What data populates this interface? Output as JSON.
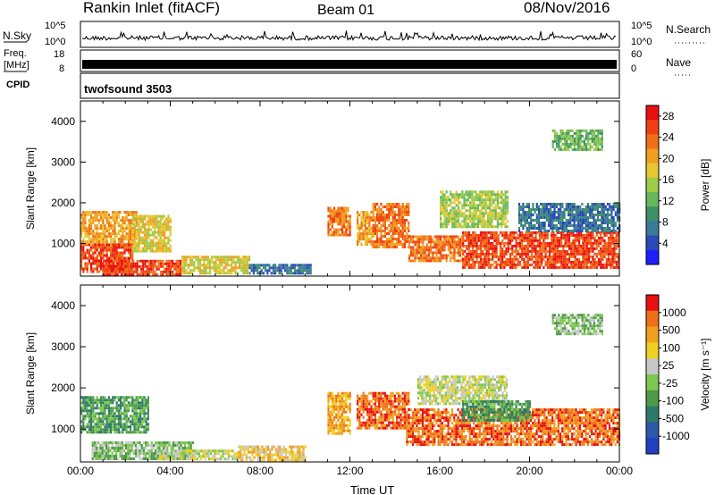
{
  "header": {
    "site": "Rankin Inlet (fitACF)",
    "beam": "Beam 01",
    "date": "08/Nov/2016"
  },
  "strips": {
    "nsky": {
      "label": "N.Sky",
      "ticks": [
        "10^5",
        "10^0"
      ],
      "right_ticks": [
        "10^5",
        "10^0"
      ],
      "right_label": "N.Search"
    },
    "freq": {
      "label_line1": "Freq.",
      "label_line2": "[MHz]",
      "ticks": [
        "18",
        "8"
      ],
      "right_ticks": [
        "60",
        "0"
      ],
      "right_label": "Nave"
    },
    "cpid": {
      "label": "CPID",
      "value": "twofsound 3503"
    }
  },
  "chart_data": [
    {
      "type": "heatmap",
      "name": "power",
      "ylabel": "Slant Range [km]",
      "ylim": [
        200,
        4500
      ],
      "y_ticks": [
        1000,
        2000,
        3000,
        4000
      ],
      "x_ticks": [
        "00:00",
        "04:00",
        "08:00",
        "12:00",
        "16:00",
        "20:00",
        "00:00"
      ],
      "xlim_hours": [
        0,
        24
      ],
      "colorbar": {
        "label": "Power [dB]",
        "ticks": [
          "4",
          "8",
          "12",
          "16",
          "20",
          "24",
          "28"
        ],
        "colors": [
          "#1e1eff",
          "#2a4ab8",
          "#3a7a9a",
          "#3e9066",
          "#66b85a",
          "#9ccc48",
          "#e8c830",
          "#f0a020",
          "#f07018",
          "#f04010",
          "#e81010"
        ]
      },
      "regions": [
        {
          "t0": 0.0,
          "t1": 2.5,
          "r0": 1000,
          "r1": 1800,
          "level": 7
        },
        {
          "t0": 0.0,
          "t1": 2.3,
          "r0": 300,
          "r1": 1000,
          "level": 9
        },
        {
          "t0": 2.3,
          "t1": 4.0,
          "r0": 800,
          "r1": 1700,
          "level": 6
        },
        {
          "t0": 1.0,
          "t1": 4.5,
          "r0": 250,
          "r1": 600,
          "level": 9
        },
        {
          "t0": 4.5,
          "t1": 7.5,
          "r0": 300,
          "r1": 700,
          "level": 6
        },
        {
          "t0": 7.5,
          "t1": 10.3,
          "r0": 250,
          "r1": 500,
          "level": 2
        },
        {
          "t0": 11.0,
          "t1": 12.0,
          "r0": 1200,
          "r1": 1900,
          "level": 8
        },
        {
          "t0": 12.3,
          "t1": 13.0,
          "r0": 1000,
          "r1": 1800,
          "level": 7
        },
        {
          "t0": 13.0,
          "t1": 14.6,
          "r0": 900,
          "r1": 2000,
          "level": 8
        },
        {
          "t0": 14.6,
          "t1": 17.0,
          "r0": 600,
          "r1": 1200,
          "level": 8
        },
        {
          "t0": 16.0,
          "t1": 19.0,
          "r0": 1400,
          "r1": 2300,
          "level": 5
        },
        {
          "t0": 17.0,
          "t1": 24.0,
          "r0": 400,
          "r1": 1300,
          "level": 9
        },
        {
          "t0": 19.5,
          "t1": 24.0,
          "r0": 1300,
          "r1": 2000,
          "level": 2
        },
        {
          "t0": 21.0,
          "t1": 23.2,
          "r0": 3300,
          "r1": 3800,
          "level": 4
        }
      ]
    },
    {
      "type": "heatmap",
      "name": "velocity",
      "ylabel": "Slant Range [km]",
      "ylim": [
        200,
        4500
      ],
      "y_ticks": [
        1000,
        2000,
        3000,
        4000
      ],
      "x_ticks": [
        "00:00",
        "04:00",
        "08:00",
        "12:00",
        "16:00",
        "20:00",
        "00:00"
      ],
      "xlabel": "Time UT",
      "xlim_hours": [
        0,
        24
      ],
      "colorbar": {
        "label": "Velocity [m s⁻¹]",
        "ticks": [
          "1000",
          "500",
          "100",
          "25",
          "-25",
          "-100",
          "-500",
          "-1000"
        ],
        "colors": [
          "#2040c0",
          "#2c5aa8",
          "#2e7a6a",
          "#4e9a4a",
          "#7cc850",
          "#c8c8c8",
          "#f0d020",
          "#f0a020",
          "#f07018",
          "#e81010"
        ]
      },
      "regions": [
        {
          "t0": 0.0,
          "t1": 3.0,
          "r0": 900,
          "r1": 1800,
          "level": 3
        },
        {
          "t0": 0.5,
          "t1": 5.0,
          "r0": 250,
          "r1": 700,
          "level": 4
        },
        {
          "t0": 3.5,
          "t1": 7.0,
          "r0": 250,
          "r1": 500,
          "level": 5
        },
        {
          "t0": 7.0,
          "t1": 10.0,
          "r0": 250,
          "r1": 600,
          "level": 6
        },
        {
          "t0": 11.0,
          "t1": 12.0,
          "r0": 900,
          "r1": 1900,
          "level": 7
        },
        {
          "t0": 12.3,
          "t1": 14.6,
          "r0": 1000,
          "r1": 1900,
          "level": 8
        },
        {
          "t0": 15.0,
          "t1": 19.0,
          "r0": 1600,
          "r1": 2300,
          "level": 5
        },
        {
          "t0": 14.5,
          "t1": 24.0,
          "r0": 600,
          "r1": 1500,
          "level": 8
        },
        {
          "t0": 17.0,
          "t1": 20.0,
          "r0": 1200,
          "r1": 1700,
          "level": 3
        },
        {
          "t0": 21.0,
          "t1": 23.2,
          "r0": 3300,
          "r1": 3800,
          "level": 4
        }
      ]
    }
  ]
}
